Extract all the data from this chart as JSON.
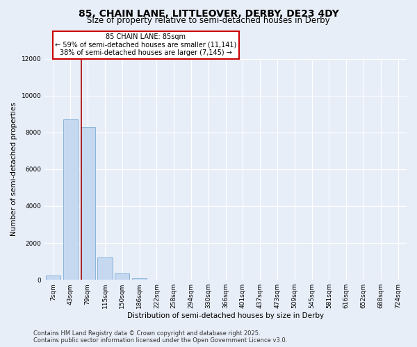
{
  "title_line1": "85, CHAIN LANE, LITTLEOVER, DERBY, DE23 4DY",
  "title_line2": "Size of property relative to semi-detached houses in Derby",
  "xlabel": "Distribution of semi-detached houses by size in Derby",
  "ylabel": "Number of semi-detached properties",
  "categories": [
    "7sqm",
    "43sqm",
    "79sqm",
    "115sqm",
    "150sqm",
    "186sqm",
    "222sqm",
    "258sqm",
    "294sqm",
    "330sqm",
    "366sqm",
    "401sqm",
    "437sqm",
    "473sqm",
    "509sqm",
    "545sqm",
    "581sqm",
    "616sqm",
    "652sqm",
    "688sqm",
    "724sqm"
  ],
  "values": [
    250,
    8700,
    8300,
    1200,
    350,
    100,
    0,
    0,
    0,
    0,
    0,
    0,
    0,
    0,
    0,
    0,
    0,
    0,
    0,
    0,
    0
  ],
  "bar_color": "#c5d8f0",
  "bar_edgecolor": "#7aadd4",
  "vline_x_index": 2.0,
  "vline_color": "#aa0000",
  "annotation_text": "85 CHAIN LANE: 85sqm\n← 59% of semi-detached houses are smaller (11,141)\n38% of semi-detached houses are larger (7,145) →",
  "annotation_box_color": "#cc0000",
  "ylim": [
    0,
    12000
  ],
  "yticks": [
    0,
    2000,
    4000,
    6000,
    8000,
    10000,
    12000
  ],
  "background_color": "#e8eef8",
  "grid_color": "#d0d8e8",
  "footer_line1": "Contains HM Land Registry data © Crown copyright and database right 2025.",
  "footer_line2": "Contains public sector information licensed under the Open Government Licence v3.0.",
  "title_fontsize": 10,
  "subtitle_fontsize": 8.5,
  "axis_label_fontsize": 7.5,
  "tick_fontsize": 6.5,
  "footer_fontsize": 6
}
